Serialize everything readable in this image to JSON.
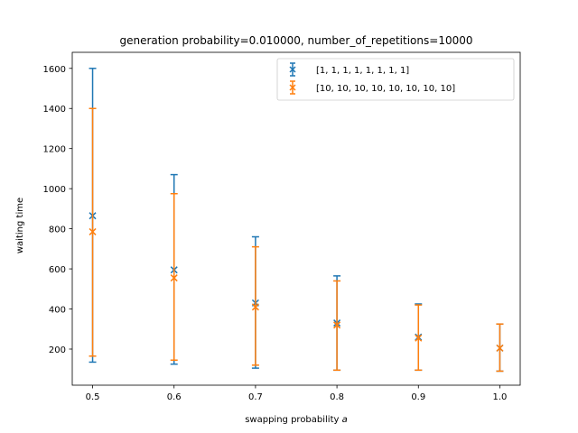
{
  "chart_data": {
    "type": "scatter",
    "title": "generation probability=0.010000, number_of_repetitions=10000",
    "xlabel": "swapping probability",
    "xlabel_var": "a",
    "ylabel": "waiting time",
    "xlim": [
      0.475,
      1.025
    ],
    "ylim": [
      20,
      1680
    ],
    "xticks": [
      0.5,
      0.6,
      0.7,
      0.8,
      0.9,
      1.0
    ],
    "xtick_labels": [
      "0.5",
      "0.6",
      "0.7",
      "0.8",
      "0.9",
      "1.0"
    ],
    "yticks": [
      200,
      400,
      600,
      800,
      1000,
      1200,
      1400,
      1600
    ],
    "ytick_labels": [
      "200",
      "400",
      "600",
      "800",
      "1000",
      "1200",
      "1400",
      "1600"
    ],
    "grid": false,
    "legend_position": "top-right",
    "x": [
      0.5,
      0.6,
      0.7,
      0.8,
      0.9,
      1.0
    ],
    "series": [
      {
        "name": "[1, 1, 1, 1, 1, 1, 1, 1]",
        "color": "#1f77b4",
        "marker": "x",
        "values": [
          865,
          595,
          430,
          330,
          260,
          205
        ],
        "err_low": [
          135,
          125,
          105,
          95,
          95,
          90
        ],
        "err_high": [
          1600,
          1070,
          760,
          565,
          425,
          325
        ]
      },
      {
        "name": "[10, 10, 10, 10, 10, 10, 10, 10]",
        "color": "#ff7f0e",
        "marker": "x",
        "values": [
          785,
          555,
          410,
          320,
          255,
          205
        ],
        "err_low": [
          165,
          145,
          120,
          95,
          95,
          90
        ],
        "err_high": [
          1400,
          975,
          710,
          540,
          420,
          325
        ]
      }
    ]
  }
}
